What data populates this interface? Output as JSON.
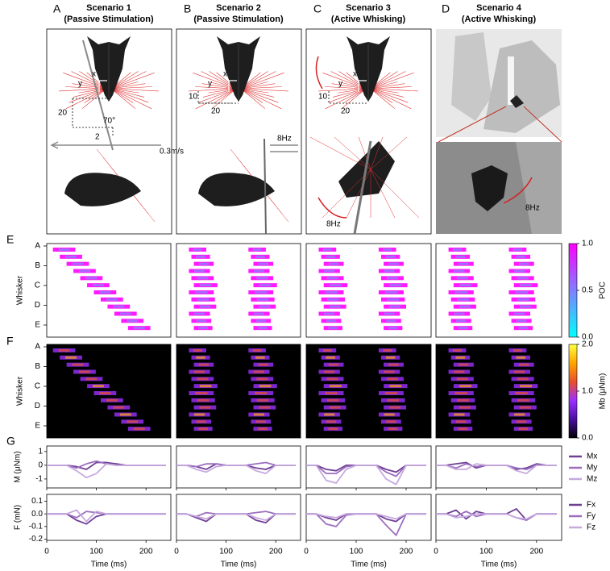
{
  "figure": {
    "panel_letters": [
      "A",
      "B",
      "C",
      "D",
      "E",
      "F",
      "G"
    ],
    "scenarios": [
      {
        "title": "Scenario 1",
        "subtitle": "(Passive Stimulation)",
        "annotations": [
          "x",
          "y",
          "20",
          "70°",
          "2",
          "0.3m/s"
        ]
      },
      {
        "title": "Scenario 2",
        "subtitle": "(Passive Stimulation)",
        "annotations": [
          "x",
          "y",
          "10",
          "20",
          "8Hz"
        ]
      },
      {
        "title": "Scenario 3",
        "subtitle": "(Active Whisking)",
        "annotations": [
          "x",
          "y",
          "10",
          "20",
          "8Hz"
        ]
      },
      {
        "title": "Scenario 4",
        "subtitle": "(Active Whisking)",
        "annotations": [
          "8Hz"
        ]
      }
    ]
  },
  "chart_data": [
    {
      "type": "heatmap",
      "ylabel": "Whisker",
      "categories": [
        "A",
        "B",
        "C",
        "D",
        "E"
      ],
      "colorbar_label": "POC",
      "clim": [
        0,
        1
      ],
      "cticks": [
        {
          "value": 0,
          "label": "0.0"
        },
        0.5,
        {
          "value": 1,
          "label": "1.0"
        }
      ],
      "colormap": [
        "#00ffff",
        "#ff00ff"
      ]
    },
    {
      "type": "heatmap",
      "ylabel": "Whisker",
      "categories": [
        "A",
        "B",
        "C",
        "D",
        "E"
      ],
      "colorbar_label": "Mb (μNm)",
      "clim": [
        0,
        2
      ],
      "cticks": [
        {
          "value": 0,
          "label": "0.0"
        },
        {
          "value": 1,
          "label": "1.0"
        },
        {
          "value": 2,
          "label": "2.0"
        }
      ],
      "colormap": [
        "#000000",
        "#4b0fa0",
        "#9b30ff",
        "#e8502a",
        "#ffa500",
        "#ffff40"
      ]
    },
    {
      "type": "line",
      "ylabel": "M (μNm)",
      "x": [
        0,
        20,
        40,
        60,
        80,
        100,
        120,
        140,
        160,
        180,
        200,
        220,
        240
      ],
      "xlim": [
        0,
        250
      ],
      "xticks": [
        0,
        100,
        200
      ],
      "ylim": [
        -1.65,
        1.4
      ],
      "yticks": [
        1,
        0,
        -1
      ],
      "series": [
        {
          "name": "Mx",
          "color": "#6f3f96",
          "panels": [
            [
              0,
              0,
              0,
              -0.1,
              -0.3,
              0.2,
              0.2,
              0.1,
              0,
              0,
              0,
              0,
              0
            ],
            [
              0,
              0,
              -0.1,
              -0.3,
              0.1,
              0,
              0,
              0,
              -0.2,
              -0.3,
              0,
              0,
              0
            ],
            [
              0,
              0,
              -0.3,
              -0.4,
              0,
              0,
              0,
              0,
              -0.3,
              -0.5,
              0,
              0,
              0
            ],
            [
              0,
              0,
              0.1,
              0.2,
              -0.2,
              0,
              0,
              0,
              -0.3,
              -0.2,
              0.1,
              0,
              0
            ]
          ]
        },
        {
          "name": "My",
          "color": "#9b6fc0",
          "panels": [
            [
              0,
              0,
              0,
              -0.2,
              0.1,
              0.3,
              0.1,
              0,
              0,
              0,
              0,
              0,
              0
            ],
            [
              0,
              0,
              -0.1,
              0.1,
              0.1,
              0,
              0,
              0,
              0.1,
              0.2,
              0,
              0,
              0
            ],
            [
              0,
              0,
              -0.6,
              -0.6,
              -0.1,
              0,
              0,
              0,
              -0.5,
              -0.8,
              0,
              0,
              0
            ],
            [
              0,
              0,
              -0.2,
              0.1,
              -0.1,
              0,
              0,
              0,
              -0.2,
              -0.3,
              0,
              0,
              0
            ]
          ]
        },
        {
          "name": "Mz",
          "color": "#c6a9de",
          "panels": [
            [
              0,
              0,
              0,
              -0.4,
              -0.9,
              -0.6,
              0.1,
              0,
              0,
              0,
              0,
              0,
              0
            ],
            [
              0,
              0,
              -0.3,
              -0.5,
              -0.1,
              0,
              0,
              0,
              -0.4,
              -0.6,
              0,
              0,
              0
            ],
            [
              0,
              0,
              -1.1,
              -1.3,
              -0.3,
              0,
              0,
              0,
              -1.0,
              -1.4,
              0,
              0,
              0
            ],
            [
              0,
              0,
              -0.3,
              -0.3,
              0.1,
              0,
              0,
              0,
              -0.4,
              -0.6,
              0,
              0,
              0
            ]
          ]
        }
      ]
    },
    {
      "type": "line",
      "ylabel": "F (mN)",
      "xlabel": "Time (ms)",
      "x": [
        0,
        20,
        40,
        60,
        80,
        100,
        120,
        140,
        160,
        180,
        200,
        220,
        240
      ],
      "xlim": [
        0,
        250
      ],
      "xticks": [
        0,
        100,
        200
      ],
      "ylim": [
        -0.21,
        0.155
      ],
      "yticks": [
        0.1,
        {
          "value": 0,
          "label": "0.0"
        },
        -0.1,
        -0.2
      ],
      "series": [
        {
          "name": "Fx",
          "color": "#6f3f96",
          "panels": [
            [
              0,
              0,
              0,
              -0.05,
              -0.08,
              -0.02,
              0,
              0,
              0,
              0,
              0,
              0,
              0
            ],
            [
              0,
              0,
              -0.03,
              -0.06,
              0,
              0,
              0,
              0,
              -0.05,
              -0.07,
              0,
              0,
              0
            ],
            [
              0,
              0,
              -0.03,
              -0.05,
              0,
              0,
              0,
              0,
              -0.04,
              -0.06,
              0,
              0,
              0
            ],
            [
              0,
              0,
              0.03,
              -0.04,
              0.02,
              0,
              0,
              0,
              0.04,
              -0.05,
              0,
              0,
              0
            ]
          ]
        },
        {
          "name": "Fy",
          "color": "#9b6fc0",
          "panels": [
            [
              0,
              0,
              0,
              -0.03,
              0.02,
              0.01,
              0,
              0,
              0,
              0,
              0,
              0,
              0
            ],
            [
              0,
              0,
              -0.02,
              0.01,
              0,
              0,
              0,
              0,
              0.01,
              0.02,
              0,
              0,
              0
            ],
            [
              0,
              0,
              -0.08,
              -0.1,
              -0.01,
              0,
              0,
              0,
              -0.09,
              -0.17,
              0,
              0,
              0
            ],
            [
              0,
              0,
              -0.02,
              0.02,
              -0.02,
              0,
              0,
              0,
              -0.03,
              -0.05,
              0,
              0,
              0
            ]
          ]
        },
        {
          "name": "Fz",
          "color": "#c6a9de",
          "panels": [
            [
              0,
              0,
              0,
              0.03,
              -0.06,
              0.02,
              0,
              0,
              0,
              0,
              0,
              0,
              0
            ],
            [
              0,
              0,
              -0.02,
              -0.04,
              0,
              0,
              0,
              0,
              -0.03,
              -0.05,
              0,
              0,
              0
            ],
            [
              0,
              0,
              -0.02,
              -0.03,
              0,
              0,
              0,
              0,
              -0.02,
              -0.04,
              0,
              0,
              0
            ],
            [
              0,
              0,
              -0.03,
              -0.02,
              0,
              0,
              0,
              0,
              -0.03,
              -0.04,
              0,
              0,
              0
            ]
          ]
        }
      ]
    }
  ]
}
